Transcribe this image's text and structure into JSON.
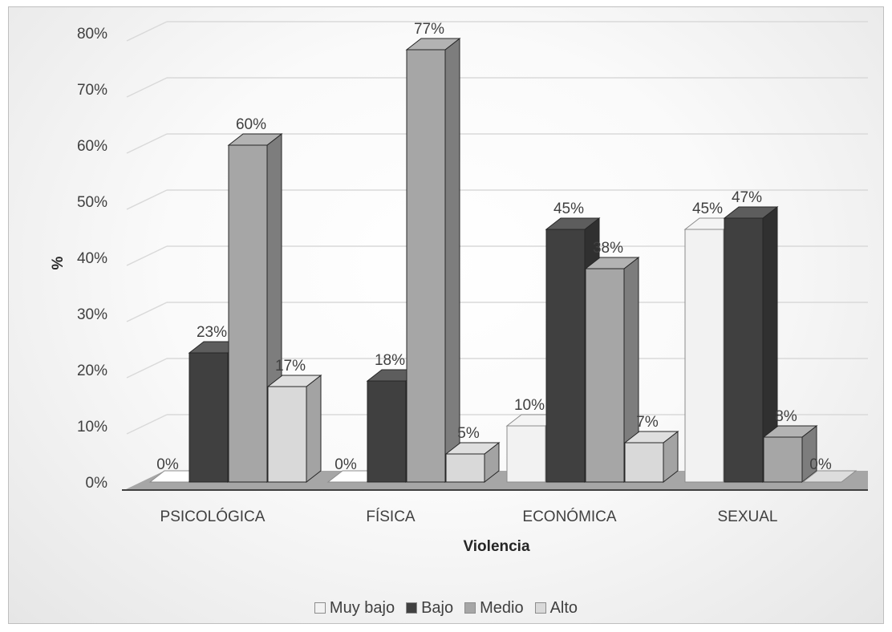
{
  "chart_data": {
    "type": "bar",
    "title": "",
    "xlabel": "Violencia",
    "ylabel": "%",
    "ylim": [
      0,
      80
    ],
    "yticks": [
      "0%",
      "10%",
      "20%",
      "30%",
      "40%",
      "50%",
      "60%",
      "70%",
      "80%"
    ],
    "categories": [
      "PSICOLÓGICA",
      "FÍSICA",
      "ECONÓMICA",
      "SEXUAL"
    ],
    "series": [
      {
        "name": "Muy bajo",
        "values": [
          0,
          0,
          10,
          45
        ],
        "labels": [
          "0%",
          "0%",
          "10%",
          "45%"
        ],
        "color": "#f2f2f2"
      },
      {
        "name": "Bajo",
        "values": [
          23,
          18,
          45,
          47
        ],
        "labels": [
          "23%",
          "18%",
          "45%",
          "47%"
        ],
        "color": "#404040"
      },
      {
        "name": "Medio",
        "values": [
          60,
          77,
          38,
          8
        ],
        "labels": [
          "60%",
          "77%",
          "38%",
          "8%"
        ],
        "color": "#a6a6a6"
      },
      {
        "name": "Alto",
        "values": [
          17,
          5,
          7,
          0
        ],
        "labels": [
          "17%",
          "5%",
          "7%",
          "0%"
        ],
        "color": "#d9d9d9"
      }
    ],
    "grid": true,
    "legend_position": "bottom",
    "style": "3d-clustered-column"
  }
}
